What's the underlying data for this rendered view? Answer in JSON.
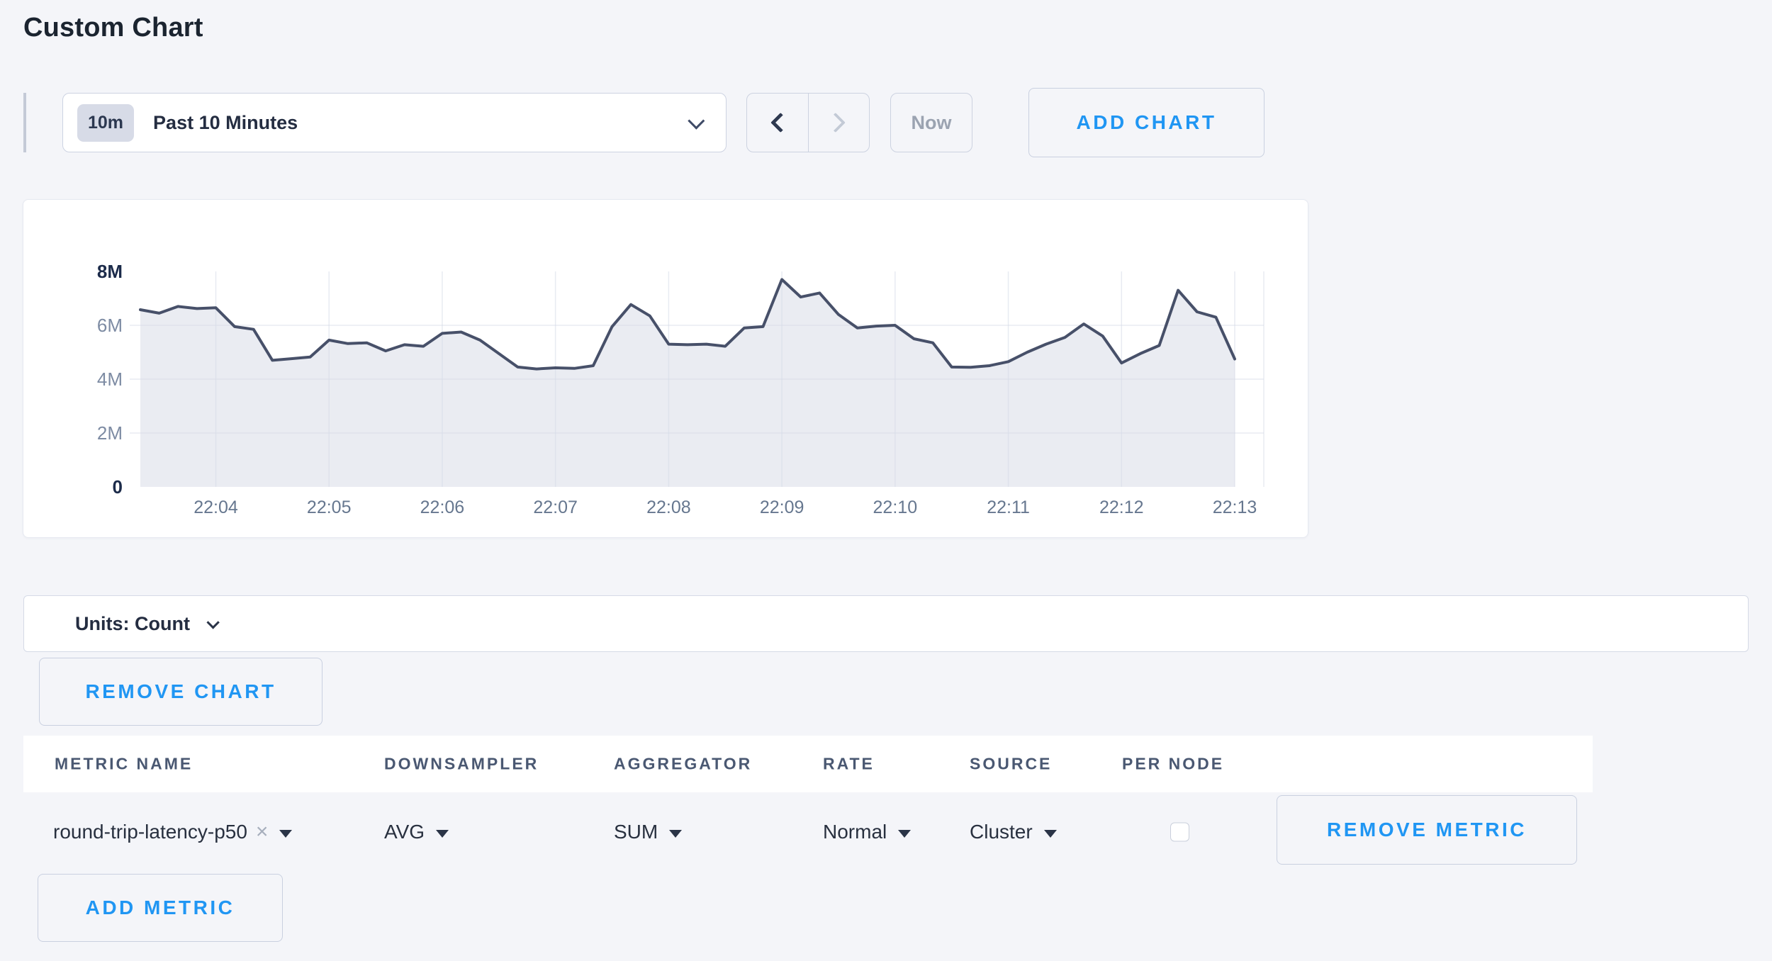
{
  "page": {
    "title": "Custom Chart",
    "background_color": "#f4f5f9",
    "accent_color": "#2096f3"
  },
  "toolbar": {
    "time_window": {
      "badge": "10m",
      "label": "Past 10 Minutes"
    },
    "now_label": "Now",
    "add_chart_label": "ADD CHART"
  },
  "chart_data": {
    "type": "area",
    "title": "",
    "xlabel": "",
    "ylabel": "",
    "unit": "count",
    "ylim": [
      0,
      8000000
    ],
    "y_ticks": [
      "0",
      "2M",
      "4M",
      "6M",
      "8M"
    ],
    "x_ticks": [
      "22:04",
      "22:05",
      "22:06",
      "22:07",
      "22:08",
      "22:09",
      "22:10",
      "22:11",
      "22:12",
      "22:13"
    ],
    "grid": true,
    "legend_position": "none",
    "line_color": "#475069",
    "fill_color": "#eaecf2",
    "grid_color": "#d5dbe8",
    "points_per_minute": 6,
    "start_offset_points": 4,
    "series": [
      {
        "name": "round-trip-latency-p50",
        "values_millions": [
          6.58,
          6.45,
          6.7,
          6.62,
          6.65,
          5.95,
          5.85,
          4.7,
          4.76,
          4.82,
          5.45,
          5.32,
          5.35,
          5.05,
          5.28,
          5.22,
          5.7,
          5.75,
          5.45,
          4.95,
          4.45,
          4.38,
          4.42,
          4.4,
          4.5,
          5.95,
          6.77,
          6.35,
          5.3,
          5.28,
          5.3,
          5.22,
          5.9,
          5.95,
          7.7,
          7.05,
          7.2,
          6.4,
          5.9,
          5.97,
          6.0,
          5.5,
          5.35,
          4.45,
          4.44,
          4.5,
          4.65,
          5.0,
          5.3,
          5.55,
          6.05,
          5.6,
          4.6,
          4.95,
          5.25,
          7.3,
          6.5,
          6.3,
          4.75
        ]
      }
    ]
  },
  "units_bar": {
    "label": "Units: Count"
  },
  "chart_actions": {
    "remove_chart_label": "REMOVE CHART"
  },
  "metrics_table": {
    "columns": [
      "METRIC NAME",
      "DOWNSAMPLER",
      "AGGREGATOR",
      "RATE",
      "SOURCE",
      "PER NODE"
    ],
    "rows": [
      {
        "metric_name": "round-trip-latency-p50",
        "clear_icon": "×",
        "downsampler": "AVG",
        "aggregator": "SUM",
        "rate": "Normal",
        "source": "Cluster",
        "per_node_checked": false,
        "remove_label": "REMOVE METRIC"
      }
    ],
    "add_metric_label": "ADD METRIC"
  }
}
